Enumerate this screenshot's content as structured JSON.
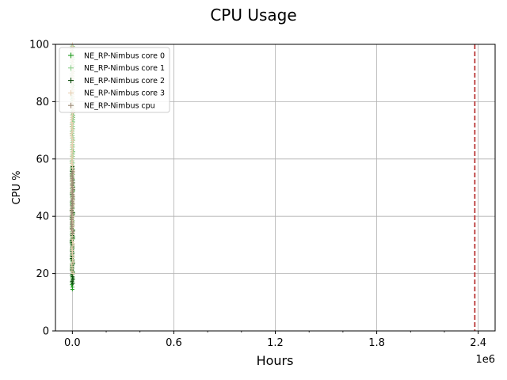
{
  "chart_data": {
    "type": "scatter",
    "title": "CPU Usage",
    "xlabel": "Hours",
    "ylabel": "CPU %",
    "x_offset_label": "1e6",
    "xlim": [
      -100000,
      2500000
    ],
    "ylim": [
      0,
      100
    ],
    "x_ticks": [
      {
        "value": 0,
        "label": "0.0"
      },
      {
        "value": 600000,
        "label": "0.6"
      },
      {
        "value": 1200000,
        "label": "1.2"
      },
      {
        "value": 1800000,
        "label": "1.8"
      },
      {
        "value": 2400000,
        "label": "2.4"
      }
    ],
    "y_ticks": [
      0,
      20,
      40,
      60,
      80,
      100
    ],
    "grid": true,
    "legend_position": "top-left",
    "vline": {
      "x": 2380000,
      "color": "#b22222",
      "style": "dashed"
    },
    "series": [
      {
        "name": "NE_RP-Nimbus core 0",
        "color": "#1e9c1e",
        "x": [
          0
        ],
        "y_min": 14.5,
        "y_max": 100
      },
      {
        "name": "NE_RP-Nimbus core 1",
        "color": "#8fd18f",
        "x": [
          0
        ],
        "y_min": 17,
        "y_max": 100
      },
      {
        "name": "NE_RP-Nimbus core 2",
        "color": "#0b4a0b",
        "x": [
          0
        ],
        "y_min": 16.5,
        "y_max": 58
      },
      {
        "name": "NE_RP-Nimbus core 3",
        "color": "#e8cfb2",
        "x": [
          0
        ],
        "y_min": 20,
        "y_max": 100
      },
      {
        "name": "NE_RP-Nimbus cpu",
        "color": "#9c8a76",
        "x": [
          0
        ],
        "y_min": 34,
        "y_max": 56
      }
    ]
  }
}
